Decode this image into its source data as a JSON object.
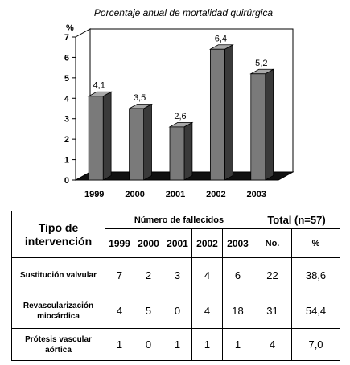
{
  "chart_data": {
    "type": "bar",
    "title": "Porcentaje anual de mortalidad quirúrgica",
    "ylabel": "%",
    "categories": [
      "1999",
      "2000",
      "2001",
      "2002",
      "2003"
    ],
    "values": [
      4.1,
      3.5,
      2.6,
      6.4,
      5.2
    ],
    "data_labels": [
      "4,1",
      "3,5",
      "2,6",
      "6,4",
      "5,2"
    ],
    "yticks": [
      "0",
      "1",
      "2",
      "3",
      "4",
      "5",
      "6",
      "7"
    ],
    "ylim": [
      0,
      7
    ],
    "grid": false,
    "legend": "none",
    "style": "3d",
    "colors": {
      "bar_front": "#7a7a7a",
      "bar_side": "#3a3a3a",
      "bar_top": "#a8a8a8",
      "floor": "#111111",
      "wall": "#ffffff"
    }
  },
  "table": {
    "header_type_line1": "Tipo de",
    "header_type_line2": "intervención",
    "header_group": "Número de fallecidos",
    "header_total": "Total (n=57)",
    "years": [
      "1999",
      "2000",
      "2001",
      "2002",
      "2003"
    ],
    "sub_no": "No.",
    "sub_pct": "%",
    "rows": [
      {
        "label_line1": "Sustitución valvular",
        "label_line2": "",
        "values": [
          "7",
          "2",
          "3",
          "4",
          "6"
        ],
        "total": "22",
        "pct": "38,6"
      },
      {
        "label_line1": "Revascularización",
        "label_line2": "miocárdica",
        "values": [
          "4",
          "5",
          "0",
          "4",
          "18"
        ],
        "total": "31",
        "pct": "54,4"
      },
      {
        "label_line1": "Prótesis vascular aórtica",
        "label_line2": "",
        "values": [
          "1",
          "0",
          "1",
          "1",
          "1"
        ],
        "total": "4",
        "pct": "7,0"
      }
    ]
  }
}
